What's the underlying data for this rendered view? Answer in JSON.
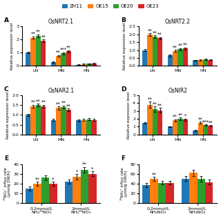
{
  "chart_data": [
    {
      "type": "bar",
      "label": "A",
      "title": "OsNRT2.1",
      "ylabel": "Relative expression level",
      "ylim": [
        0,
        3
      ],
      "yticks": [
        0,
        1,
        2,
        3
      ],
      "legend": "upper center",
      "categories": [
        "LN",
        "MN",
        "HN"
      ],
      "series": [
        {
          "name": "ZH11",
          "color": "#1f77b4",
          "values": [
            1.0,
            0.3,
            0.08
          ],
          "errors": [
            0.05,
            0.05,
            0.02
          ]
        },
        {
          "name": "OE15",
          "color": "#ff7f0e",
          "values": [
            2.15,
            0.75,
            0.12
          ],
          "errors": [
            0.1,
            0.07,
            0.03
          ]
        },
        {
          "name": "OE20",
          "color": "#2ca02c",
          "values": [
            2.3,
            0.95,
            0.15
          ],
          "errors": [
            0.1,
            0.08,
            0.03
          ]
        },
        {
          "name": "OE23",
          "color": "#d62728",
          "values": [
            1.9,
            1.1,
            0.18
          ],
          "errors": [
            0.1,
            0.09,
            0.04
          ]
        }
      ],
      "annotations": [
        {
          "category": "LN",
          "series": "OE15",
          "text": "**"
        },
        {
          "category": "LN",
          "series": "OE20",
          "text": "**"
        },
        {
          "category": "LN",
          "series": "OE23",
          "text": "**"
        },
        {
          "category": "MN",
          "series": "OE15",
          "text": "**"
        },
        {
          "category": "MN",
          "series": "OE20",
          "text": "***"
        },
        {
          "category": "MN",
          "series": "OE23",
          "text": "**"
        }
      ]
    },
    {
      "type": "bar",
      "label": "B",
      "title": "OsNRT2.2",
      "ylabel": "Relative expression level",
      "ylim": [
        0,
        2.5
      ],
      "yticks": [
        0.0,
        0.5,
        1.0,
        1.5,
        2.0,
        2.5
      ],
      "categories": [
        "LN",
        "MN",
        "HN"
      ],
      "series": [
        {
          "name": "ZH11",
          "color": "#1f77b4",
          "values": [
            1.0,
            0.65,
            0.35
          ],
          "errors": [
            0.05,
            0.05,
            0.03
          ]
        },
        {
          "name": "OE15",
          "color": "#ff7f0e",
          "values": [
            2.0,
            0.95,
            0.38
          ],
          "errors": [
            0.08,
            0.06,
            0.04
          ]
        },
        {
          "name": "OE20",
          "color": "#2ca02c",
          "values": [
            1.85,
            1.05,
            0.4
          ],
          "errors": [
            0.08,
            0.07,
            0.04
          ]
        },
        {
          "name": "OE23",
          "color": "#d62728",
          "values": [
            1.75,
            1.1,
            0.38
          ],
          "errors": [
            0.07,
            0.07,
            0.03
          ]
        }
      ],
      "annotations": [
        {
          "category": "LN",
          "series": "OE15",
          "text": "**"
        },
        {
          "category": "LN",
          "series": "OE20",
          "text": "**"
        },
        {
          "category": "LN",
          "series": "OE23",
          "text": "**"
        },
        {
          "category": "MN",
          "series": "OE15",
          "text": "**"
        },
        {
          "category": "MN",
          "series": "OE20",
          "text": "**"
        },
        {
          "category": "MN",
          "series": "OE23",
          "text": "**"
        }
      ]
    },
    {
      "type": "bar",
      "label": "C",
      "title": "OsNAR2.1",
      "ylabel": "Relative expression level",
      "ylim": [
        0,
        2.0
      ],
      "yticks": [
        0.0,
        0.5,
        1.0,
        1.5,
        2.0
      ],
      "categories": [
        "LN",
        "MN",
        "HN"
      ],
      "series": [
        {
          "name": "ZH11",
          "color": "#1f77b4",
          "values": [
            1.0,
            0.75,
            0.72
          ],
          "errors": [
            0.05,
            0.05,
            0.04
          ]
        },
        {
          "name": "OE15",
          "color": "#ff7f0e",
          "values": [
            1.45,
            1.35,
            0.75
          ],
          "errors": [
            0.07,
            0.08,
            0.05
          ]
        },
        {
          "name": "OE20",
          "color": "#2ca02c",
          "values": [
            1.5,
            1.4,
            0.78
          ],
          "errors": [
            0.07,
            0.08,
            0.05
          ]
        },
        {
          "name": "OE23",
          "color": "#d62728",
          "values": [
            1.45,
            1.25,
            0.75
          ],
          "errors": [
            0.07,
            0.07,
            0.05
          ]
        }
      ],
      "annotations": [
        {
          "category": "LN",
          "series": "OE15",
          "text": "**"
        },
        {
          "category": "LN",
          "series": "OE20",
          "text": "**"
        },
        {
          "category": "LN",
          "series": "OE23",
          "text": "**"
        },
        {
          "category": "MN",
          "series": "OE15",
          "text": "**"
        },
        {
          "category": "MN",
          "series": "OE20",
          "text": "**"
        },
        {
          "category": "MN",
          "series": "OE23",
          "text": "**"
        }
      ]
    },
    {
      "type": "bar",
      "label": "D",
      "title": "OsNIR2",
      "ylabel": "Relative expression level",
      "ylim": [
        0,
        5
      ],
      "yticks": [
        0,
        1,
        2,
        3,
        4,
        5
      ],
      "categories": [
        "LN",
        "MN",
        "HN"
      ],
      "series": [
        {
          "name": "ZH11",
          "color": "#1f77b4",
          "values": [
            1.5,
            1.0,
            0.5
          ],
          "errors": [
            0.1,
            0.08,
            0.06
          ]
        },
        {
          "name": "OE15",
          "color": "#ff7f0e",
          "values": [
            3.8,
            1.8,
            1.5
          ],
          "errors": [
            0.4,
            0.15,
            0.15
          ]
        },
        {
          "name": "OE20",
          "color": "#2ca02c",
          "values": [
            3.2,
            2.0,
            1.2
          ],
          "errors": [
            0.35,
            0.15,
            0.1
          ]
        },
        {
          "name": "OE23",
          "color": "#d62728",
          "values": [
            3.1,
            1.9,
            1.1
          ],
          "errors": [
            0.3,
            0.13,
            0.1
          ]
        }
      ],
      "annotations": [
        {
          "category": "LN",
          "series": "OE15",
          "text": "**"
        },
        {
          "category": "LN",
          "series": "OE20",
          "text": "**"
        },
        {
          "category": "LN",
          "series": "OE23",
          "text": "**"
        },
        {
          "category": "MN",
          "series": "OE15",
          "text": "**"
        },
        {
          "category": "MN",
          "series": "OE20",
          "text": "**"
        },
        {
          "category": "MN",
          "series": "OE23",
          "text": "*"
        },
        {
          "category": "HN",
          "series": "OE15",
          "text": "**"
        },
        {
          "category": "HN",
          "series": "OE20",
          "text": "***"
        },
        {
          "category": "HN",
          "series": "OE23",
          "text": "**"
        }
      ]
    },
    {
      "type": "bar",
      "label": "E",
      "ylabel": "¹⁵NO₃⁻ influx rate\n(μmolg DW/h)",
      "ylim": [
        0,
        40
      ],
      "yticks": [
        0,
        10,
        20,
        30,
        40
      ],
      "categories": [
        "0.2mmol/L\nNH₄¹⁵NO₃",
        "2mmol/L\nNH₄¹⁵NO₃"
      ],
      "series": [
        {
          "name": "ZH11",
          "color": "#1f77b4",
          "values": [
            15,
            22
          ],
          "errors": [
            2,
            2
          ]
        },
        {
          "name": "OE15",
          "color": "#ff7f0e",
          "values": [
            20,
            27
          ],
          "errors": [
            2,
            2.5
          ]
        },
        {
          "name": "OE20",
          "color": "#2ca02c",
          "values": [
            26,
            34
          ],
          "errors": [
            2.5,
            3
          ]
        },
        {
          "name": "OE23",
          "color": "#d62728",
          "values": [
            20,
            30
          ],
          "errors": [
            2,
            2.5
          ]
        }
      ],
      "annotations": [
        {
          "category": "0.2mmol/L\nNH₄¹⁵NO₃",
          "series": "OE15",
          "text": "**"
        },
        {
          "category": "0.2mmol/L\nNH₄¹⁵NO₃",
          "series": "OE23",
          "text": "*"
        },
        {
          "category": "2mmol/L\nNH₄¹⁵NO₃",
          "series": "OE15",
          "text": "*"
        },
        {
          "category": "2mmol/L\nNH₄¹⁵NO₃",
          "series": "OE20",
          "text": "**"
        },
        {
          "category": "2mmol/L\nNH₄¹⁵NO₃",
          "series": "OE23",
          "text": "*"
        }
      ]
    },
    {
      "type": "bar",
      "label": "F",
      "ylabel": "¹⁵NH₄⁺ influx rate\n(μmolg DW/h)",
      "ylim": [
        0,
        80
      ],
      "yticks": [
        0,
        20,
        40,
        60,
        80
      ],
      "categories": [
        "0.2mmol/L\nNH₄NO₃",
        "2mmol/L\nNH₄NO₃"
      ],
      "series": [
        {
          "name": "ZH11",
          "color": "#1f77b4",
          "values": [
            37,
            50
          ],
          "errors": [
            4,
            5
          ]
        },
        {
          "name": "OE15",
          "color": "#ff7f0e",
          "values": [
            50,
            62
          ],
          "errors": [
            4,
            6
          ]
        },
        {
          "name": "OE20",
          "color": "#2ca02c",
          "values": [
            42,
            50
          ],
          "errors": [
            4,
            6
          ]
        },
        {
          "name": "OE23",
          "color": "#d62728",
          "values": [
            42,
            43
          ],
          "errors": [
            4,
            5
          ]
        }
      ],
      "annotations": [
        {
          "category": "0.2mmol/L\nNH₄NO₃",
          "series": "OE15",
          "text": "**"
        }
      ]
    }
  ]
}
